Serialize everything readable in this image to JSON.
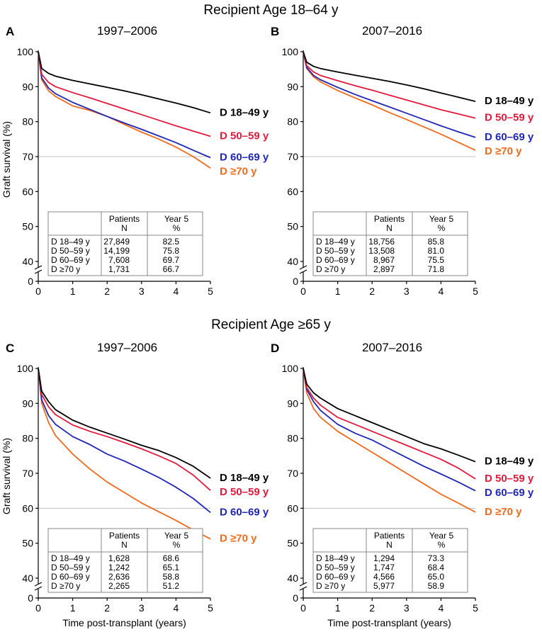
{
  "section_titles": [
    "Recipient Age 18–64 y",
    "Recipient Age ≥65 y"
  ],
  "colors": {
    "D 18–49 y": "#000000",
    "D 50–59 y": "#e31a3c",
    "D 60–69 y": "#1f26b8",
    "D ≥70 y": "#f26a1b",
    "refline": "#c0c0c0"
  },
  "chart_data": [
    {
      "panel": "A",
      "type": "line",
      "title": "1997–2006",
      "xlabel": "",
      "ylabel": "Graft survival (%)",
      "xlim": [
        0,
        5
      ],
      "ylim": [
        35,
        100
      ],
      "xticks": [
        0,
        1,
        2,
        3,
        4,
        5
      ],
      "yticks": [
        0,
        40,
        50,
        60,
        70,
        80,
        90,
        100
      ],
      "axis_break": true,
      "reference_line": 70,
      "table_header": {
        "patients": [
          "Patients",
          "N"
        ],
        "year5": [
          "Year 5",
          "%"
        ]
      },
      "series": [
        {
          "name": "D 18–49 y",
          "x": [
            0,
            0.1,
            0.3,
            0.5,
            1,
            1.5,
            2,
            2.5,
            3,
            3.5,
            4,
            4.5,
            5
          ],
          "values": [
            100,
            95.2,
            93.8,
            93.0,
            91.8,
            90.8,
            89.8,
            88.8,
            87.7,
            86.5,
            85.3,
            84.0,
            82.5
          ],
          "n": "27,849",
          "year5": "82.5"
        },
        {
          "name": "D 50–59 y",
          "x": [
            0,
            0.1,
            0.3,
            0.5,
            1,
            1.5,
            2,
            2.5,
            3,
            3.5,
            4,
            4.5,
            5
          ],
          "values": [
            100,
            93.5,
            91.2,
            90.0,
            88.3,
            86.8,
            85.2,
            83.6,
            82.0,
            80.4,
            78.8,
            77.3,
            75.8
          ],
          "n": "14,199",
          "year5": "75.8"
        },
        {
          "name": "D 60–69 y",
          "x": [
            0,
            0.1,
            0.3,
            0.5,
            1,
            1.5,
            2,
            2.5,
            3,
            3.5,
            4,
            4.5,
            5
          ],
          "values": [
            100,
            92.5,
            89.6,
            88.0,
            85.5,
            83.5,
            81.5,
            79.6,
            77.8,
            75.9,
            74.0,
            71.8,
            69.7
          ],
          "n": "7,608",
          "year5": "69.7"
        },
        {
          "name": "D ≥70 y",
          "x": [
            0,
            0.1,
            0.3,
            0.5,
            1,
            1.5,
            2,
            2.5,
            3,
            3.5,
            4,
            4.5,
            5
          ],
          "values": [
            100,
            92.0,
            88.8,
            87.2,
            84.5,
            83.2,
            81.5,
            79.2,
            77.0,
            75.0,
            72.7,
            70.0,
            66.7
          ],
          "n": "1,731",
          "year5": "66.7"
        }
      ]
    },
    {
      "panel": "B",
      "type": "line",
      "title": "2007–2016",
      "xlabel": "",
      "ylabel": "",
      "xlim": [
        0,
        5
      ],
      "ylim": [
        35,
        100
      ],
      "xticks": [
        0,
        1,
        2,
        3,
        4,
        5
      ],
      "yticks": [
        0,
        40,
        50,
        60,
        70,
        80,
        90,
        100
      ],
      "axis_break": true,
      "reference_line": 70,
      "table_header": {
        "patients": [
          "Patients",
          "N"
        ],
        "year5": [
          "Year 5",
          "%"
        ]
      },
      "series": [
        {
          "name": "D 18–49 y",
          "x": [
            0,
            0.1,
            0.3,
            0.5,
            1,
            1.5,
            2,
            2.5,
            3,
            3.5,
            4,
            4.5,
            5
          ],
          "values": [
            100,
            97.0,
            95.8,
            95.2,
            94.2,
            93.3,
            92.4,
            91.5,
            90.5,
            89.4,
            88.2,
            87.0,
            85.8
          ],
          "n": "18,756",
          "year5": "85.8"
        },
        {
          "name": "D 50–59 y",
          "x": [
            0,
            0.1,
            0.3,
            0.5,
            1,
            1.5,
            2,
            2.5,
            3,
            3.5,
            4,
            4.5,
            5
          ],
          "values": [
            100,
            96.0,
            94.2,
            93.2,
            91.7,
            90.3,
            89.0,
            87.6,
            86.2,
            84.8,
            83.4,
            82.2,
            81.0
          ],
          "n": "13,508",
          "year5": "81.0"
        },
        {
          "name": "D 60–69 y",
          "x": [
            0,
            0.1,
            0.3,
            0.5,
            1,
            1.5,
            2,
            2.5,
            3,
            3.5,
            4,
            4.5,
            5
          ],
          "values": [
            100,
            95.5,
            93.2,
            92.0,
            89.8,
            87.8,
            86.0,
            84.2,
            82.4,
            80.6,
            78.8,
            77.1,
            75.5
          ],
          "n": "8,967",
          "year5": "75.5"
        },
        {
          "name": "D ≥70 y",
          "x": [
            0,
            0.1,
            0.3,
            0.5,
            1,
            1.5,
            2,
            2.5,
            3,
            3.5,
            4,
            4.5,
            5
          ],
          "values": [
            100,
            95.2,
            92.8,
            91.4,
            88.9,
            86.8,
            84.8,
            82.6,
            80.6,
            78.5,
            76.4,
            74.1,
            71.8
          ],
          "n": "2,897",
          "year5": "71.8"
        }
      ]
    },
    {
      "panel": "C",
      "type": "line",
      "title": "1997–2006",
      "xlabel": "Time post-transplant (years)",
      "ylabel": "Graft survival (%)",
      "xlim": [
        0,
        5
      ],
      "ylim": [
        35,
        100
      ],
      "xticks": [
        0,
        1,
        2,
        3,
        4,
        5
      ],
      "yticks": [
        0,
        40,
        50,
        60,
        70,
        80,
        90,
        100
      ],
      "axis_break": true,
      "reference_line": 60,
      "table_header": {
        "patients": [
          "Patients",
          "N"
        ],
        "year5": [
          "Year 5",
          "%"
        ]
      },
      "series": [
        {
          "name": "D 18–49 y",
          "x": [
            0,
            0.1,
            0.3,
            0.5,
            1,
            1.5,
            2,
            2.5,
            3,
            3.5,
            4,
            4.5,
            5
          ],
          "values": [
            100,
            93.5,
            90.5,
            88.2,
            85.2,
            83.2,
            81.5,
            79.8,
            78.0,
            76.5,
            74.5,
            72.0,
            68.6
          ],
          "n": "1,628",
          "year5": "68.6"
        },
        {
          "name": "D 50–59 y",
          "x": [
            0,
            0.1,
            0.3,
            0.5,
            1,
            1.5,
            2,
            2.5,
            3,
            3.5,
            4,
            4.5,
            5
          ],
          "values": [
            100,
            92.5,
            89.0,
            86.8,
            83.8,
            82.0,
            80.5,
            78.8,
            77.0,
            75.0,
            72.8,
            69.5,
            65.1
          ],
          "n": "1,242",
          "year5": "65.1"
        },
        {
          "name": "D 60–69 y",
          "x": [
            0,
            0.1,
            0.3,
            0.5,
            1,
            1.5,
            2,
            2.5,
            3,
            3.5,
            4,
            4.5,
            5
          ],
          "values": [
            100,
            91.0,
            86.5,
            84.0,
            80.5,
            78.2,
            75.5,
            73.5,
            71.2,
            68.8,
            66.0,
            62.8,
            58.8
          ],
          "n": "2,636",
          "year5": "58.8"
        },
        {
          "name": "D ≥70 y",
          "x": [
            0,
            0.1,
            0.3,
            0.5,
            1,
            1.5,
            2,
            2.5,
            3,
            3.5,
            4,
            4.5,
            5
          ],
          "values": [
            100,
            90.0,
            84.5,
            80.8,
            75.5,
            71.2,
            67.5,
            64.5,
            61.5,
            59.0,
            56.5,
            53.8,
            51.2
          ],
          "n": "2,265",
          "year5": "51.2"
        }
      ]
    },
    {
      "panel": "D",
      "type": "line",
      "title": "2007–2016",
      "xlabel": "Time post-transplant (years)",
      "ylabel": "",
      "xlim": [
        0,
        5
      ],
      "ylim": [
        35,
        100
      ],
      "xticks": [
        0,
        1,
        2,
        3,
        4,
        5
      ],
      "yticks": [
        0,
        40,
        50,
        60,
        70,
        80,
        90,
        100
      ],
      "axis_break": true,
      "reference_line": 60,
      "table_header": {
        "patients": [
          "Patients",
          "N"
        ],
        "year5": [
          "Year 5",
          "%"
        ]
      },
      "series": [
        {
          "name": "D 18–49 y",
          "x": [
            0,
            0.1,
            0.3,
            0.5,
            1,
            1.5,
            2,
            2.5,
            3,
            3.5,
            4,
            4.5,
            5
          ],
          "values": [
            100,
            95.5,
            93.0,
            91.5,
            88.5,
            86.5,
            84.5,
            82.5,
            80.5,
            78.5,
            77.0,
            75.2,
            73.3
          ],
          "n": "1,294",
          "year5": "73.3"
        },
        {
          "name": "D 50–59 y",
          "x": [
            0,
            0.1,
            0.3,
            0.5,
            1,
            1.5,
            2,
            2.5,
            3,
            3.5,
            4,
            4.5,
            5
          ],
          "values": [
            100,
            94.5,
            91.5,
            89.5,
            86.0,
            84.0,
            82.0,
            80.0,
            78.0,
            76.0,
            74.0,
            71.5,
            68.4
          ],
          "n": "1,747",
          "year5": "68.4"
        },
        {
          "name": "D 60–69 y",
          "x": [
            0,
            0.1,
            0.3,
            0.5,
            1,
            1.5,
            2,
            2.5,
            3,
            3.5,
            4,
            4.5,
            5
          ],
          "values": [
            100,
            94.0,
            90.5,
            88.0,
            84.0,
            81.5,
            79.5,
            77.0,
            74.5,
            72.0,
            69.8,
            67.5,
            65.0
          ],
          "n": "4,566",
          "year5": "65.0"
        },
        {
          "name": "D ≥70 y",
          "x": [
            0,
            0.1,
            0.3,
            0.5,
            1,
            1.5,
            2,
            2.5,
            3,
            3.5,
            4,
            4.5,
            5
          ],
          "values": [
            100,
            93.0,
            88.5,
            86.0,
            82.0,
            79.0,
            76.0,
            73.0,
            70.0,
            67.0,
            64.0,
            61.5,
            58.9
          ],
          "n": "5,977",
          "year5": "58.9"
        }
      ]
    }
  ]
}
